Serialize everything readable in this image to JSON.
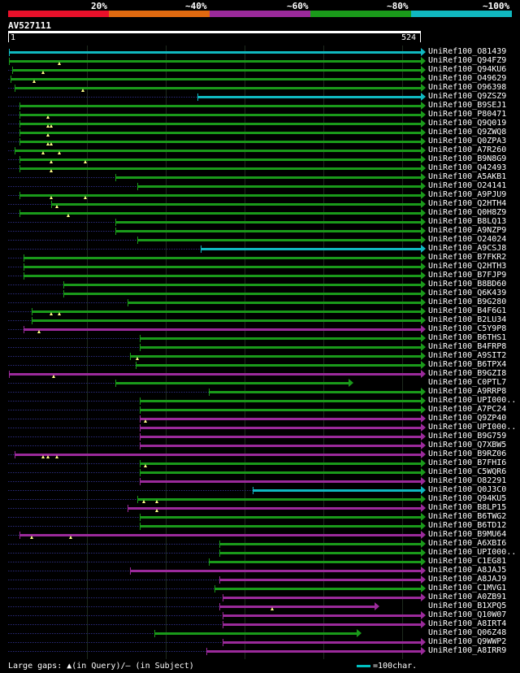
{
  "legend": {
    "labels": [
      "20%",
      "~40%",
      "~60%",
      "~80%",
      "~100%"
    ],
    "colors": [
      "#e8102a",
      "#e06a10",
      "#9b2a9b",
      "#1a9a1a",
      "#10b8c0"
    ]
  },
  "query": {
    "title": "AV527111",
    "start": "1",
    "end": "524"
  },
  "color_map": {
    "c": "#10b8c0",
    "g": "#1a9a1a",
    "p": "#9b2a9b"
  },
  "hits": [
    {
      "id": "UniRef100_O81439",
      "s": 1,
      "e": 524,
      "c": "c",
      "k": []
    },
    {
      "id": "UniRef100_Q94FZ9",
      "s": 1,
      "e": 524,
      "c": "g",
      "k": [
        65
      ]
    },
    {
      "id": "UniRef100_Q94KU6",
      "s": 5,
      "e": 524,
      "c": "g",
      "k": [
        44
      ]
    },
    {
      "id": "UniRef100_O49629",
      "s": 3,
      "e": 524,
      "c": "g",
      "k": [
        33
      ]
    },
    {
      "id": "UniRef100_O96398",
      "s": 8,
      "e": 524,
      "c": "g",
      "k": [
        95
      ]
    },
    {
      "id": "UniRef100_Q9ZSZ9",
      "s": 240,
      "e": 524,
      "c": "c",
      "k": []
    },
    {
      "id": "UniRef100_B9SEJ1",
      "s": 14,
      "e": 524,
      "c": "g",
      "k": []
    },
    {
      "id": "UniRef100_P80471",
      "s": 14,
      "e": 524,
      "c": "g",
      "k": [
        50
      ]
    },
    {
      "id": "UniRef100_Q9Q019",
      "s": 14,
      "e": 524,
      "c": "g",
      "k": [
        50,
        55
      ]
    },
    {
      "id": "UniRef100_Q9ZWQ8",
      "s": 14,
      "e": 524,
      "c": "g",
      "k": [
        50
      ]
    },
    {
      "id": "UniRef100_Q0ZPA3",
      "s": 14,
      "e": 524,
      "c": "g",
      "k": [
        50,
        55
      ]
    },
    {
      "id": "UniRef100_A7R260",
      "s": 8,
      "e": 524,
      "c": "g",
      "k": [
        44,
        65
      ]
    },
    {
      "id": "UniRef100_B9N8G9",
      "s": 14,
      "e": 524,
      "c": "g",
      "k": [
        55,
        98
      ]
    },
    {
      "id": "UniRef100_Q42493",
      "s": 14,
      "e": 524,
      "c": "g",
      "k": [
        55
      ]
    },
    {
      "id": "UniRef100_A5AKB1",
      "s": 136,
      "e": 524,
      "c": "g",
      "k": []
    },
    {
      "id": "UniRef100_O24141",
      "s": 164,
      "e": 524,
      "c": "g",
      "k": []
    },
    {
      "id": "UniRef100_A9PJU9",
      "s": 14,
      "e": 524,
      "c": "g",
      "k": [
        55,
        98
      ]
    },
    {
      "id": "UniRef100_Q2HTH4",
      "s": 55,
      "e": 524,
      "c": "g",
      "k": [
        62
      ]
    },
    {
      "id": "UniRef100_Q0H8Z9",
      "s": 14,
      "e": 524,
      "c": "g",
      "k": [
        76
      ]
    },
    {
      "id": "UniRef100_B8LQ13",
      "s": 136,
      "e": 524,
      "c": "g",
      "k": []
    },
    {
      "id": "UniRef100_A9NZP9",
      "s": 136,
      "e": 524,
      "c": "g",
      "k": []
    },
    {
      "id": "UniRef100_O24024",
      "s": 164,
      "e": 524,
      "c": "g",
      "k": []
    },
    {
      "id": "UniRef100_A9CSJ8",
      "s": 244,
      "e": 524,
      "c": "c",
      "k": []
    },
    {
      "id": "UniRef100_B7FKR2",
      "s": 20,
      "e": 524,
      "c": "g",
      "k": []
    },
    {
      "id": "UniRef100_Q2HTH3",
      "s": 20,
      "e": 524,
      "c": "g",
      "k": []
    },
    {
      "id": "UniRef100_B7FJP9",
      "s": 20,
      "e": 524,
      "c": "g",
      "k": []
    },
    {
      "id": "UniRef100_B8BD60",
      "s": 70,
      "e": 524,
      "c": "g",
      "k": []
    },
    {
      "id": "UniRef100_Q6K439",
      "s": 70,
      "e": 524,
      "c": "g",
      "k": []
    },
    {
      "id": "UniRef100_B9G280",
      "s": 152,
      "e": 524,
      "c": "g",
      "k": []
    },
    {
      "id": "UniRef100_B4F6G1",
      "s": 30,
      "e": 524,
      "c": "g",
      "k": [
        55,
        65
      ]
    },
    {
      "id": "UniRef100_B2LU34",
      "s": 30,
      "e": 524,
      "c": "g",
      "k": []
    },
    {
      "id": "UniRef100_C5Y9P8",
      "s": 20,
      "e": 524,
      "c": "p",
      "k": [
        39
      ]
    },
    {
      "id": "UniRef100_B6THS1",
      "s": 167,
      "e": 524,
      "c": "g",
      "k": []
    },
    {
      "id": "UniRef100_B4FRP8",
      "s": 167,
      "e": 524,
      "c": "g",
      "k": []
    },
    {
      "id": "UniRef100_A9SIT2",
      "s": 155,
      "e": 524,
      "c": "g",
      "k": [
        164
      ]
    },
    {
      "id": "UniRef100_B6TPX4",
      "s": 162,
      "e": 524,
      "c": "g",
      "k": []
    },
    {
      "id": "UniRef100_B9GZI8",
      "s": 1,
      "e": 524,
      "c": "p",
      "k": [
        58
      ]
    },
    {
      "id": "UniRef100_C0PTL7",
      "s": 136,
      "e": 432,
      "c": "g",
      "k": []
    },
    {
      "id": "UniRef100_A9RRP8",
      "s": 255,
      "e": 524,
      "c": "g",
      "k": []
    },
    {
      "id": "UniRef100_UPI000..",
      "s": 167,
      "e": 524,
      "c": "g",
      "k": []
    },
    {
      "id": "UniRef100_A7PC24",
      "s": 167,
      "e": 524,
      "c": "g",
      "k": []
    },
    {
      "id": "UniRef100_Q9ZP40",
      "s": 167,
      "e": 524,
      "c": "p",
      "k": [
        174
      ]
    },
    {
      "id": "UniRef100_UPI000..",
      "s": 167,
      "e": 524,
      "c": "p",
      "k": []
    },
    {
      "id": "UniRef100_B9G759",
      "s": 167,
      "e": 524,
      "c": "p",
      "k": []
    },
    {
      "id": "UniRef100_Q7XBW5",
      "s": 167,
      "e": 524,
      "c": "p",
      "k": []
    },
    {
      "id": "UniRef100_B9RZ06",
      "s": 8,
      "e": 524,
      "c": "p",
      "k": [
        44,
        51,
        62
      ]
    },
    {
      "id": "UniRef100_B7FHI6",
      "s": 167,
      "e": 524,
      "c": "g",
      "k": [
        174
      ]
    },
    {
      "id": "UniRef100_C5WQR6",
      "s": 167,
      "e": 524,
      "c": "g",
      "k": []
    },
    {
      "id": "UniRef100_O82291",
      "s": 167,
      "e": 524,
      "c": "p",
      "k": []
    },
    {
      "id": "UniRef100_Q0J3C0",
      "s": 310,
      "e": 524,
      "c": "c",
      "k": []
    },
    {
      "id": "UniRef100_Q94KU5",
      "s": 164,
      "e": 524,
      "c": "g",
      "k": [
        172,
        189
      ]
    },
    {
      "id": "UniRef100_B8LP15",
      "s": 152,
      "e": 524,
      "c": "p",
      "k": [
        189
      ]
    },
    {
      "id": "UniRef100_B6TWG2",
      "s": 167,
      "e": 524,
      "c": "g",
      "k": []
    },
    {
      "id": "UniRef100_B6TD12",
      "s": 167,
      "e": 524,
      "c": "g",
      "k": []
    },
    {
      "id": "UniRef100_B9MU64",
      "s": 14,
      "e": 524,
      "c": "p",
      "k": [
        30,
        79
      ]
    },
    {
      "id": "UniRef100_A6XBI6",
      "s": 268,
      "e": 524,
      "c": "g",
      "k": []
    },
    {
      "id": "UniRef100_UPI000..",
      "s": 268,
      "e": 524,
      "c": "g",
      "k": []
    },
    {
      "id": "UniRef100_C1EG81",
      "s": 255,
      "e": 524,
      "c": "g",
      "k": []
    },
    {
      "id": "UniRef100_A8JAJ5",
      "s": 155,
      "e": 524,
      "c": "p",
      "k": []
    },
    {
      "id": "UniRef100_A8JAJ9",
      "s": 268,
      "e": 524,
      "c": "p",
      "k": []
    },
    {
      "id": "UniRef100_C1MVG1",
      "s": 262,
      "e": 524,
      "c": "g",
      "k": []
    },
    {
      "id": "UniRef100_A0ZB91",
      "s": 272,
      "e": 524,
      "c": "p",
      "k": []
    },
    {
      "id": "UniRef100_B1XPQ5",
      "s": 268,
      "e": 465,
      "c": "p",
      "k": [
        335
      ]
    },
    {
      "id": "UniRef100_Q10W07",
      "s": 272,
      "e": 524,
      "c": "p",
      "k": []
    },
    {
      "id": "UniRef100_A8IRT4",
      "s": 272,
      "e": 524,
      "c": "p",
      "k": []
    },
    {
      "id": "UniRef100_Q06Z48",
      "s": 186,
      "e": 442,
      "c": "g",
      "k": []
    },
    {
      "id": "UniRef100_Q9WWP2",
      "s": 272,
      "e": 524,
      "c": "p",
      "k": []
    },
    {
      "id": "UniRef100_A8IRR9",
      "s": 252,
      "e": 524,
      "c": "p",
      "k": []
    }
  ],
  "footer": {
    "text": "Large gaps: ▲(in Query)/— (in Subject)",
    "scale_text": "=100char."
  }
}
